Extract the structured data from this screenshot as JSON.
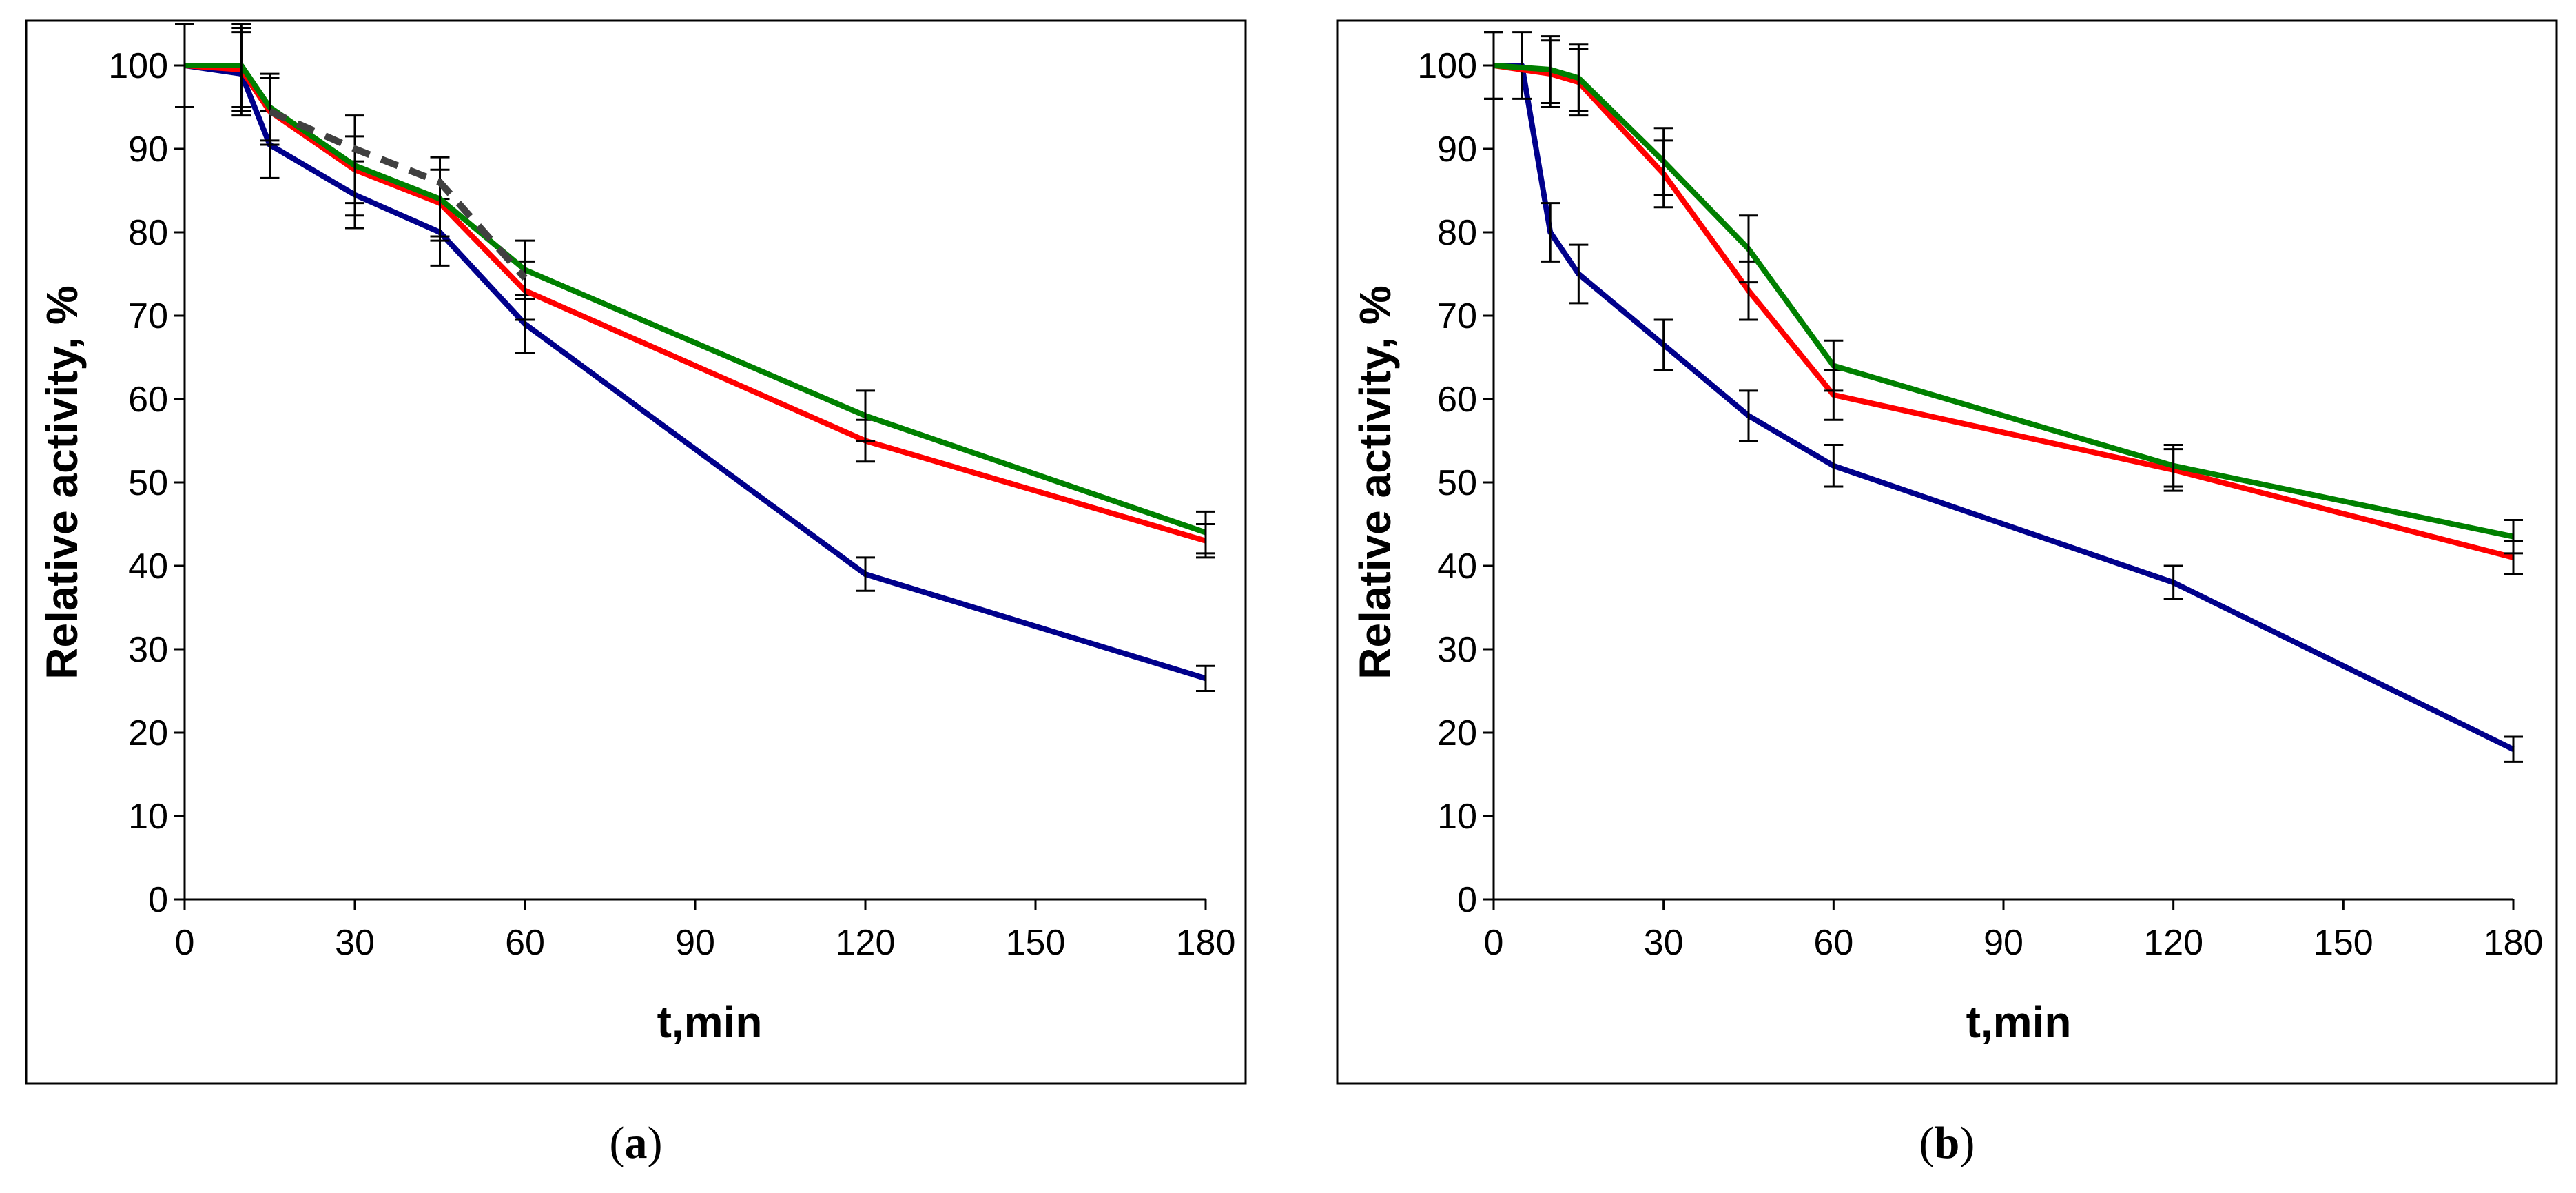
{
  "chart_data": [
    {
      "id": "a",
      "type": "line",
      "caption_letter": "a",
      "xlabel": "t,min",
      "ylabel": "Relative activity, %",
      "xlim": [
        0,
        180
      ],
      "ylim": [
        0,
        100
      ],
      "xticks": [
        0,
        30,
        60,
        90,
        120,
        150,
        180
      ],
      "yticks": [
        0,
        10,
        20,
        30,
        40,
        50,
        60,
        70,
        80,
        90,
        100
      ],
      "grid": false,
      "series": [
        {
          "name": "blue",
          "color": "#00008B",
          "dashed": false,
          "x": [
            0,
            10,
            15,
            30,
            45,
            60,
            120,
            180
          ],
          "y": [
            100,
            99,
            90.5,
            84.5,
            80,
            69,
            39,
            26.5
          ],
          "err": [
            5,
            5,
            4,
            4,
            4,
            3.5,
            2,
            1.5
          ]
        },
        {
          "name": "red",
          "color": "#FF0000",
          "dashed": false,
          "x": [
            0,
            10,
            15,
            30,
            45,
            60,
            120,
            180
          ],
          "y": [
            100,
            99.5,
            94.5,
            87.5,
            83.5,
            73,
            55,
            43
          ],
          "err": [
            5,
            5,
            4,
            4,
            4,
            3.5,
            2.5,
            2
          ]
        },
        {
          "name": "green",
          "color": "#008000",
          "dashed": false,
          "x": [
            0,
            10,
            15,
            30,
            45,
            60,
            120,
            180
          ],
          "y": [
            100,
            100,
            95,
            88,
            84,
            75.5,
            58,
            44
          ],
          "err": [
            5,
            5,
            4,
            6,
            5,
            3.5,
            3,
            2.5
          ]
        },
        {
          "name": "gray-dashed",
          "color": "#404040",
          "dashed": true,
          "x": [
            15,
            30,
            45,
            60
          ],
          "y": [
            94.5,
            90,
            86,
            74.5
          ],
          "err": []
        }
      ]
    },
    {
      "id": "b",
      "type": "line",
      "caption_letter": "b",
      "xlabel": "t,min",
      "ylabel": "Relative activity, %",
      "xlim": [
        0,
        180
      ],
      "ylim": [
        0,
        100
      ],
      "xticks": [
        0,
        30,
        60,
        90,
        120,
        150,
        180
      ],
      "yticks": [
        0,
        10,
        20,
        30,
        40,
        50,
        60,
        70,
        80,
        90,
        100
      ],
      "grid": false,
      "series": [
        {
          "name": "blue",
          "color": "#00008B",
          "dashed": false,
          "x": [
            0,
            5,
            10,
            15,
            30,
            45,
            60,
            120,
            180
          ],
          "y": [
            100,
            100,
            80,
            75,
            66.5,
            58,
            52,
            38,
            18
          ],
          "err": [
            4,
            4,
            3.5,
            3.5,
            3,
            3,
            2.5,
            2,
            1.5
          ]
        },
        {
          "name": "red",
          "color": "#FF0000",
          "dashed": false,
          "x": [
            0,
            10,
            15,
            30,
            45,
            60,
            120,
            180
          ],
          "y": [
            100,
            99,
            98,
            87,
            73,
            60.5,
            51.5,
            41
          ],
          "err": [
            4,
            4,
            4,
            4,
            3.5,
            3,
            2.5,
            2
          ]
        },
        {
          "name": "green",
          "color": "#008000",
          "dashed": false,
          "x": [
            0,
            10,
            15,
            30,
            45,
            60,
            120,
            180
          ],
          "y": [
            100,
            99.5,
            98.5,
            88.5,
            78,
            64,
            52,
            43.5
          ],
          "err": [
            4,
            4,
            4,
            4,
            4,
            3,
            2.5,
            2
          ]
        }
      ]
    }
  ]
}
